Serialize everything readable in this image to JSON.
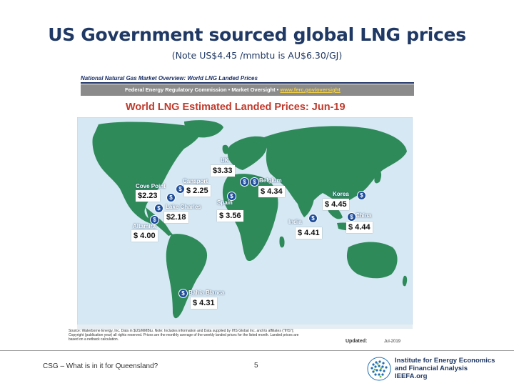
{
  "slide": {
    "title": "US Government sourced global LNG prices",
    "subtitle": "(Note US$4.45 /mmbtu is AU$6.30/GJ)"
  },
  "figure": {
    "header": "National Natural Gas Market Overview: World LNG Landed Prices",
    "agency": "Federal Energy Regulatory Commission • Market Oversight • ",
    "link": "www.ferc.gov/oversight",
    "map_title": "World LNG Estimated Landed Prices: ",
    "map_date": "Jun-19",
    "source_note": "Source: Waterborne Energy, Inc. Data in $US/MMBtu. Note: Includes information and Data supplied by IHS Global Inc. and its affiliates (\"IHS\"); Copyright (publication year) all rights reserved. Prices are the monthly average of the weekly landed prices for the listed month. Landed prices are based on a netback calculation.",
    "updated_label": "Updated:",
    "updated_value": "Jul-2019"
  },
  "prices": [
    {
      "terminal": "UK",
      "price": "$3.33"
    },
    {
      "terminal": "Cove Point",
      "price": "$2.23"
    },
    {
      "terminal": "Canaport",
      "price": "$ 2.25"
    },
    {
      "terminal": "Belgium",
      "price": "$ 4.34"
    },
    {
      "terminal": "Lake Charles",
      "price": "$2.18"
    },
    {
      "terminal": "Spain",
      "price": "$ 3.56"
    },
    {
      "terminal": "Korea",
      "price": "$ 4.45"
    },
    {
      "terminal": "Altamira",
      "price": "$ 4.00"
    },
    {
      "terminal": "India",
      "price": "$ 4.41"
    },
    {
      "terminal": "China",
      "price": "$ 4.44"
    },
    {
      "terminal": "Bahia Blanca",
      "price": "$ 4.31"
    }
  ],
  "footer": {
    "left": "CSG – What is in it for Queensland?",
    "page": "5",
    "org_line1": "Institute for Energy Economics",
    "org_line2": "and Financial Analysis",
    "org_line3": "IEEFA.org"
  },
  "colors": {
    "title": "#1F3864",
    "map_title": "#c0392b",
    "ocean": "#d6e8f3",
    "land": "#2f8a5a"
  },
  "icons": {
    "marker": "dollar-marker-icon",
    "logo": "globe-icon"
  }
}
